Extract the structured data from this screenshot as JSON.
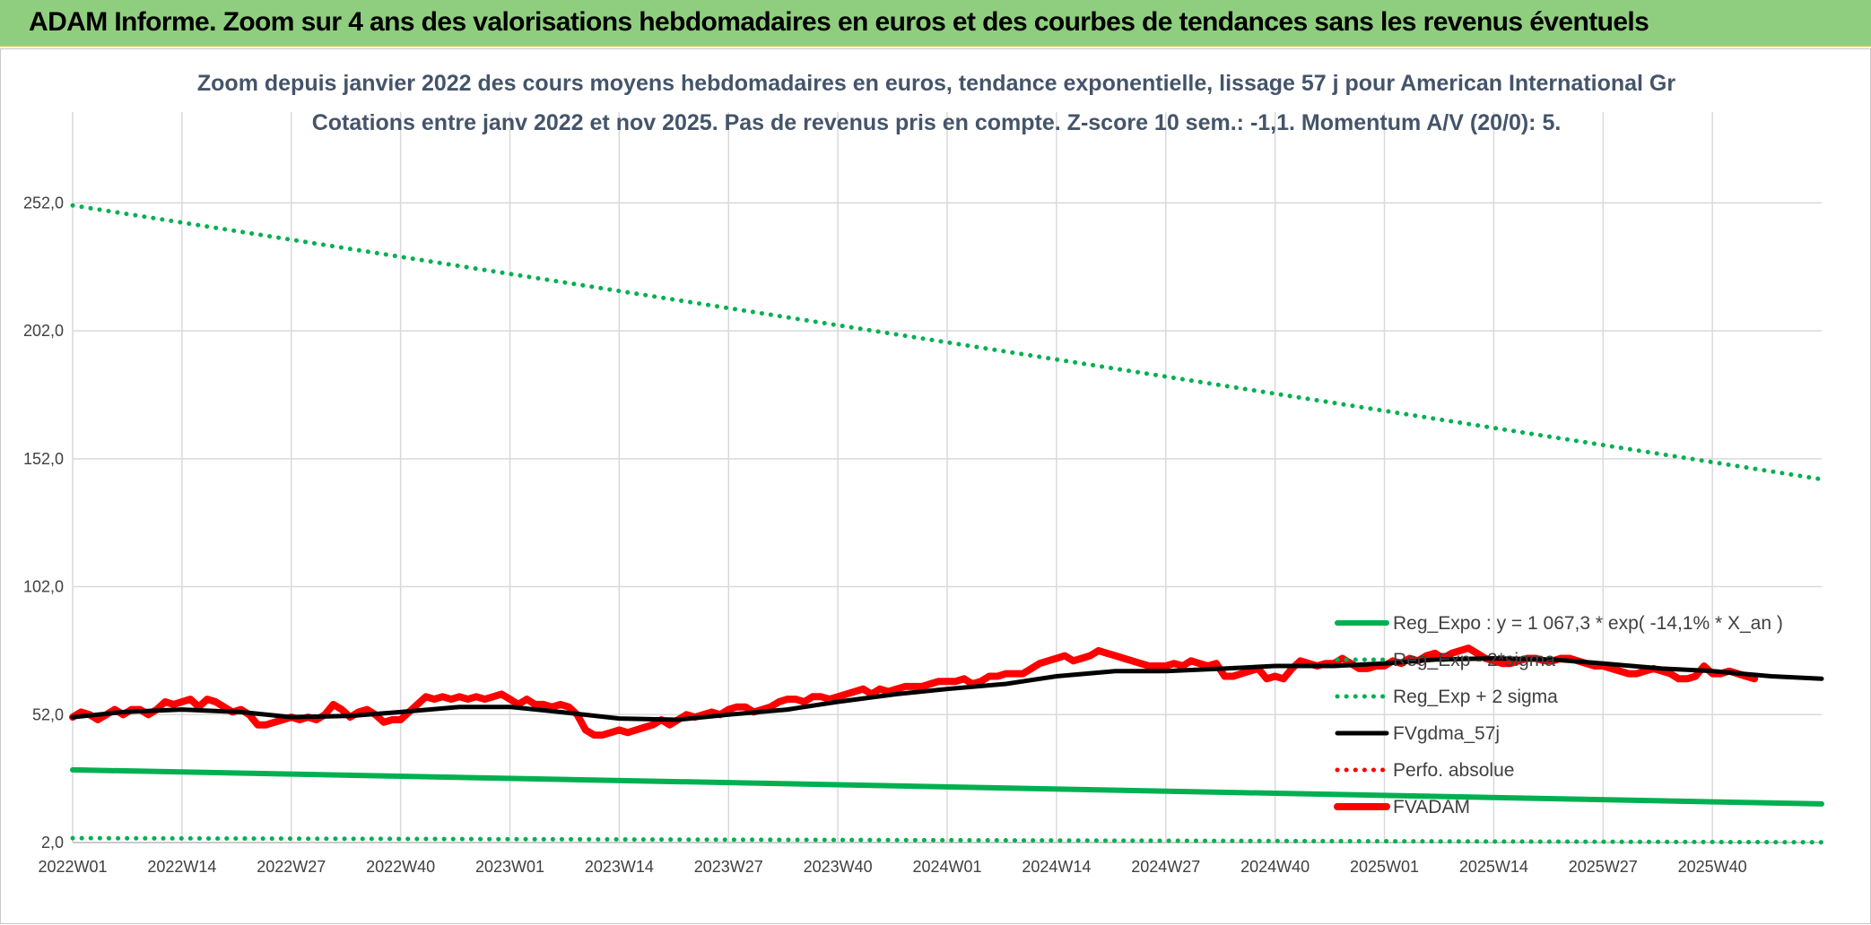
{
  "banner": {
    "title": "ADAM Informe. Zoom sur 4 ans des valorisations hebdomadaires en euros et des courbes de tendances sans les revenus éventuels",
    "background_color": "#8fce7e"
  },
  "chart_data": {
    "type": "line",
    "title": "Zoom depuis janvier 2022 des cours moyens hebdomadaires en euros, tendance exponentielle, lissage 57 j pour American International Gr",
    "subtitle": "Cotations entre janv 2022 et nov 2025. Pas de revenus pris en compte. Z-score 10 sem.: -1,1. Momentum A/V (20/0): 5.",
    "xlabel": "",
    "ylabel": "",
    "ylim": [
      2,
      277
    ],
    "y_ticks": [
      "2,0",
      "52,0",
      "102,0",
      "152,0",
      "202,0",
      "252,0"
    ],
    "y_tick_values": [
      2,
      52,
      102,
      152,
      202,
      252
    ],
    "x_ticks": [
      "2022W01",
      "2022W14",
      "2022W27",
      "2022W40",
      "2023W01",
      "2023W14",
      "2023W27",
      "2023W40",
      "2024W01",
      "2024W14",
      "2024W27",
      "2024W40",
      "2025W01",
      "2025W14",
      "2025W27",
      "2025W40"
    ],
    "x_tick_weeks": [
      0,
      13,
      26,
      39,
      52,
      65,
      78,
      91,
      104,
      117,
      130,
      143,
      156,
      169,
      182,
      195
    ],
    "x_range_weeks": [
      0,
      208
    ],
    "grid": true,
    "legend_position": "bottom-right",
    "series": [
      {
        "name": "Reg_Expo : y = 1 067,3 * exp( -14,1% *  X_an )",
        "color": "#00b050",
        "style": "solid",
        "points": [
          [
            0,
            30.4
          ],
          [
            208,
            17.1
          ]
        ]
      },
      {
        "name": "Reg_Exp - 2*sigma",
        "color": "#00b050",
        "style": "dotted",
        "points": [
          [
            0,
            3.7
          ],
          [
            208,
            2.1
          ]
        ]
      },
      {
        "name": "Reg_Exp + 2 sigma",
        "color": "#00b050",
        "style": "dotted",
        "points": [
          [
            0,
            251
          ],
          [
            208,
            144
          ]
        ]
      },
      {
        "name": "FVgdma_57j",
        "color": "#000000",
        "style": "solid",
        "points": [
          [
            0,
            51
          ],
          [
            6,
            53
          ],
          [
            13,
            54
          ],
          [
            20,
            53
          ],
          [
            26,
            51
          ],
          [
            33,
            51.5
          ],
          [
            39,
            53
          ],
          [
            46,
            55
          ],
          [
            52,
            55
          ],
          [
            58,
            53
          ],
          [
            65,
            50.5
          ],
          [
            72,
            50
          ],
          [
            78,
            52
          ],
          [
            85,
            54
          ],
          [
            91,
            57
          ],
          [
            98,
            60
          ],
          [
            104,
            62
          ],
          [
            111,
            64
          ],
          [
            117,
            67
          ],
          [
            124,
            69
          ],
          [
            130,
            69
          ],
          [
            137,
            70
          ],
          [
            143,
            71
          ],
          [
            150,
            71
          ],
          [
            156,
            72
          ],
          [
            162,
            73.5
          ],
          [
            169,
            74
          ],
          [
            176,
            73.5
          ],
          [
            182,
            72
          ],
          [
            189,
            70
          ],
          [
            195,
            69
          ],
          [
            202,
            67
          ],
          [
            208,
            66
          ]
        ]
      },
      {
        "name": "Perfo. absolue",
        "color": "#ff0000",
        "style": "dotted",
        "points": []
      },
      {
        "name": "FVADAM",
        "color": "#ff0000",
        "style": "solid",
        "points": [
          [
            0,
            51
          ],
          [
            1,
            53
          ],
          [
            2,
            52
          ],
          [
            3,
            50
          ],
          [
            4,
            52
          ],
          [
            5,
            54
          ],
          [
            6,
            52
          ],
          [
            7,
            54
          ],
          [
            8,
            54
          ],
          [
            9,
            52
          ],
          [
            10,
            54
          ],
          [
            11,
            57
          ],
          [
            12,
            56
          ],
          [
            13,
            57
          ],
          [
            14,
            58
          ],
          [
            15,
            55
          ],
          [
            16,
            58
          ],
          [
            17,
            57
          ],
          [
            18,
            55
          ],
          [
            19,
            53
          ],
          [
            20,
            54
          ],
          [
            21,
            52
          ],
          [
            22,
            48
          ],
          [
            23,
            48
          ],
          [
            24,
            49
          ],
          [
            25,
            50
          ],
          [
            26,
            51
          ],
          [
            27,
            50
          ],
          [
            28,
            51
          ],
          [
            29,
            50
          ],
          [
            30,
            52
          ],
          [
            31,
            56
          ],
          [
            32,
            54
          ],
          [
            33,
            51
          ],
          [
            34,
            53
          ],
          [
            35,
            54
          ],
          [
            36,
            52
          ],
          [
            37,
            49
          ],
          [
            38,
            50
          ],
          [
            39,
            50
          ],
          [
            40,
            53
          ],
          [
            41,
            56
          ],
          [
            42,
            59
          ],
          [
            43,
            58
          ],
          [
            44,
            59
          ],
          [
            45,
            58
          ],
          [
            46,
            59
          ],
          [
            47,
            58
          ],
          [
            48,
            59
          ],
          [
            49,
            58
          ],
          [
            50,
            59
          ],
          [
            51,
            60
          ],
          [
            52,
            58
          ],
          [
            53,
            56
          ],
          [
            54,
            58
          ],
          [
            55,
            56
          ],
          [
            56,
            56
          ],
          [
            57,
            55
          ],
          [
            58,
            56
          ],
          [
            59,
            55
          ],
          [
            60,
            52
          ],
          [
            61,
            46
          ],
          [
            62,
            44
          ],
          [
            63,
            44
          ],
          [
            64,
            45
          ],
          [
            65,
            46
          ],
          [
            66,
            45
          ],
          [
            67,
            46
          ],
          [
            68,
            47
          ],
          [
            69,
            48
          ],
          [
            70,
            50
          ],
          [
            71,
            48
          ],
          [
            72,
            50
          ],
          [
            73,
            52
          ],
          [
            74,
            51
          ],
          [
            75,
            52
          ],
          [
            76,
            53
          ],
          [
            77,
            52
          ],
          [
            78,
            54
          ],
          [
            79,
            55
          ],
          [
            80,
            55
          ],
          [
            81,
            53
          ],
          [
            82,
            54
          ],
          [
            83,
            55
          ],
          [
            84,
            57
          ],
          [
            85,
            58
          ],
          [
            86,
            58
          ],
          [
            87,
            57
          ],
          [
            88,
            59
          ],
          [
            89,
            59
          ],
          [
            90,
            58
          ],
          [
            91,
            59
          ],
          [
            92,
            60
          ],
          [
            93,
            61
          ],
          [
            94,
            62
          ],
          [
            95,
            60
          ],
          [
            96,
            62
          ],
          [
            97,
            61
          ],
          [
            98,
            62
          ],
          [
            99,
            63
          ],
          [
            100,
            63
          ],
          [
            101,
            63
          ],
          [
            102,
            64
          ],
          [
            103,
            65
          ],
          [
            104,
            65
          ],
          [
            105,
            65
          ],
          [
            106,
            66
          ],
          [
            107,
            64
          ],
          [
            108,
            65
          ],
          [
            109,
            67
          ],
          [
            110,
            67
          ],
          [
            111,
            68
          ],
          [
            112,
            68
          ],
          [
            113,
            68
          ],
          [
            114,
            70
          ],
          [
            115,
            72
          ],
          [
            116,
            73
          ],
          [
            117,
            74
          ],
          [
            118,
            75
          ],
          [
            119,
            73
          ],
          [
            120,
            74
          ],
          [
            121,
            75
          ],
          [
            122,
            77
          ],
          [
            123,
            76
          ],
          [
            124,
            75
          ],
          [
            125,
            74
          ],
          [
            126,
            73
          ],
          [
            127,
            72
          ],
          [
            128,
            71
          ],
          [
            129,
            71
          ],
          [
            130,
            71
          ],
          [
            131,
            72
          ],
          [
            132,
            71
          ],
          [
            133,
            73
          ],
          [
            134,
            72
          ],
          [
            135,
            71
          ],
          [
            136,
            72
          ],
          [
            137,
            67
          ],
          [
            138,
            67
          ],
          [
            139,
            68
          ],
          [
            140,
            69
          ],
          [
            141,
            70
          ],
          [
            142,
            66
          ],
          [
            143,
            67
          ],
          [
            144,
            66
          ],
          [
            145,
            70
          ],
          [
            146,
            73
          ],
          [
            147,
            72
          ],
          [
            148,
            71
          ],
          [
            149,
            72
          ],
          [
            150,
            72
          ],
          [
            151,
            74
          ],
          [
            152,
            72
          ],
          [
            153,
            70
          ],
          [
            154,
            70
          ],
          [
            155,
            71
          ],
          [
            156,
            71
          ],
          [
            157,
            73
          ],
          [
            158,
            72
          ],
          [
            159,
            74
          ],
          [
            160,
            73
          ],
          [
            161,
            75
          ],
          [
            162,
            76
          ],
          [
            163,
            74
          ],
          [
            164,
            76
          ],
          [
            165,
            77
          ],
          [
            166,
            78
          ],
          [
            167,
            76
          ],
          [
            168,
            74
          ],
          [
            169,
            73
          ],
          [
            170,
            72
          ],
          [
            171,
            72
          ],
          [
            172,
            73
          ],
          [
            173,
            74
          ],
          [
            174,
            74
          ],
          [
            175,
            73
          ],
          [
            176,
            73
          ],
          [
            177,
            74
          ],
          [
            178,
            74
          ],
          [
            179,
            73
          ],
          [
            180,
            72
          ],
          [
            181,
            71
          ],
          [
            182,
            71
          ],
          [
            183,
            70
          ],
          [
            184,
            69
          ],
          [
            185,
            68
          ],
          [
            186,
            68
          ],
          [
            187,
            69
          ],
          [
            188,
            70
          ],
          [
            189,
            69
          ],
          [
            190,
            68
          ],
          [
            191,
            66
          ],
          [
            192,
            66
          ],
          [
            193,
            67
          ],
          [
            194,
            71
          ],
          [
            195,
            68
          ],
          [
            196,
            68
          ],
          [
            197,
            69
          ],
          [
            198,
            68
          ],
          [
            199,
            67
          ],
          [
            200,
            66
          ]
        ]
      }
    ]
  }
}
